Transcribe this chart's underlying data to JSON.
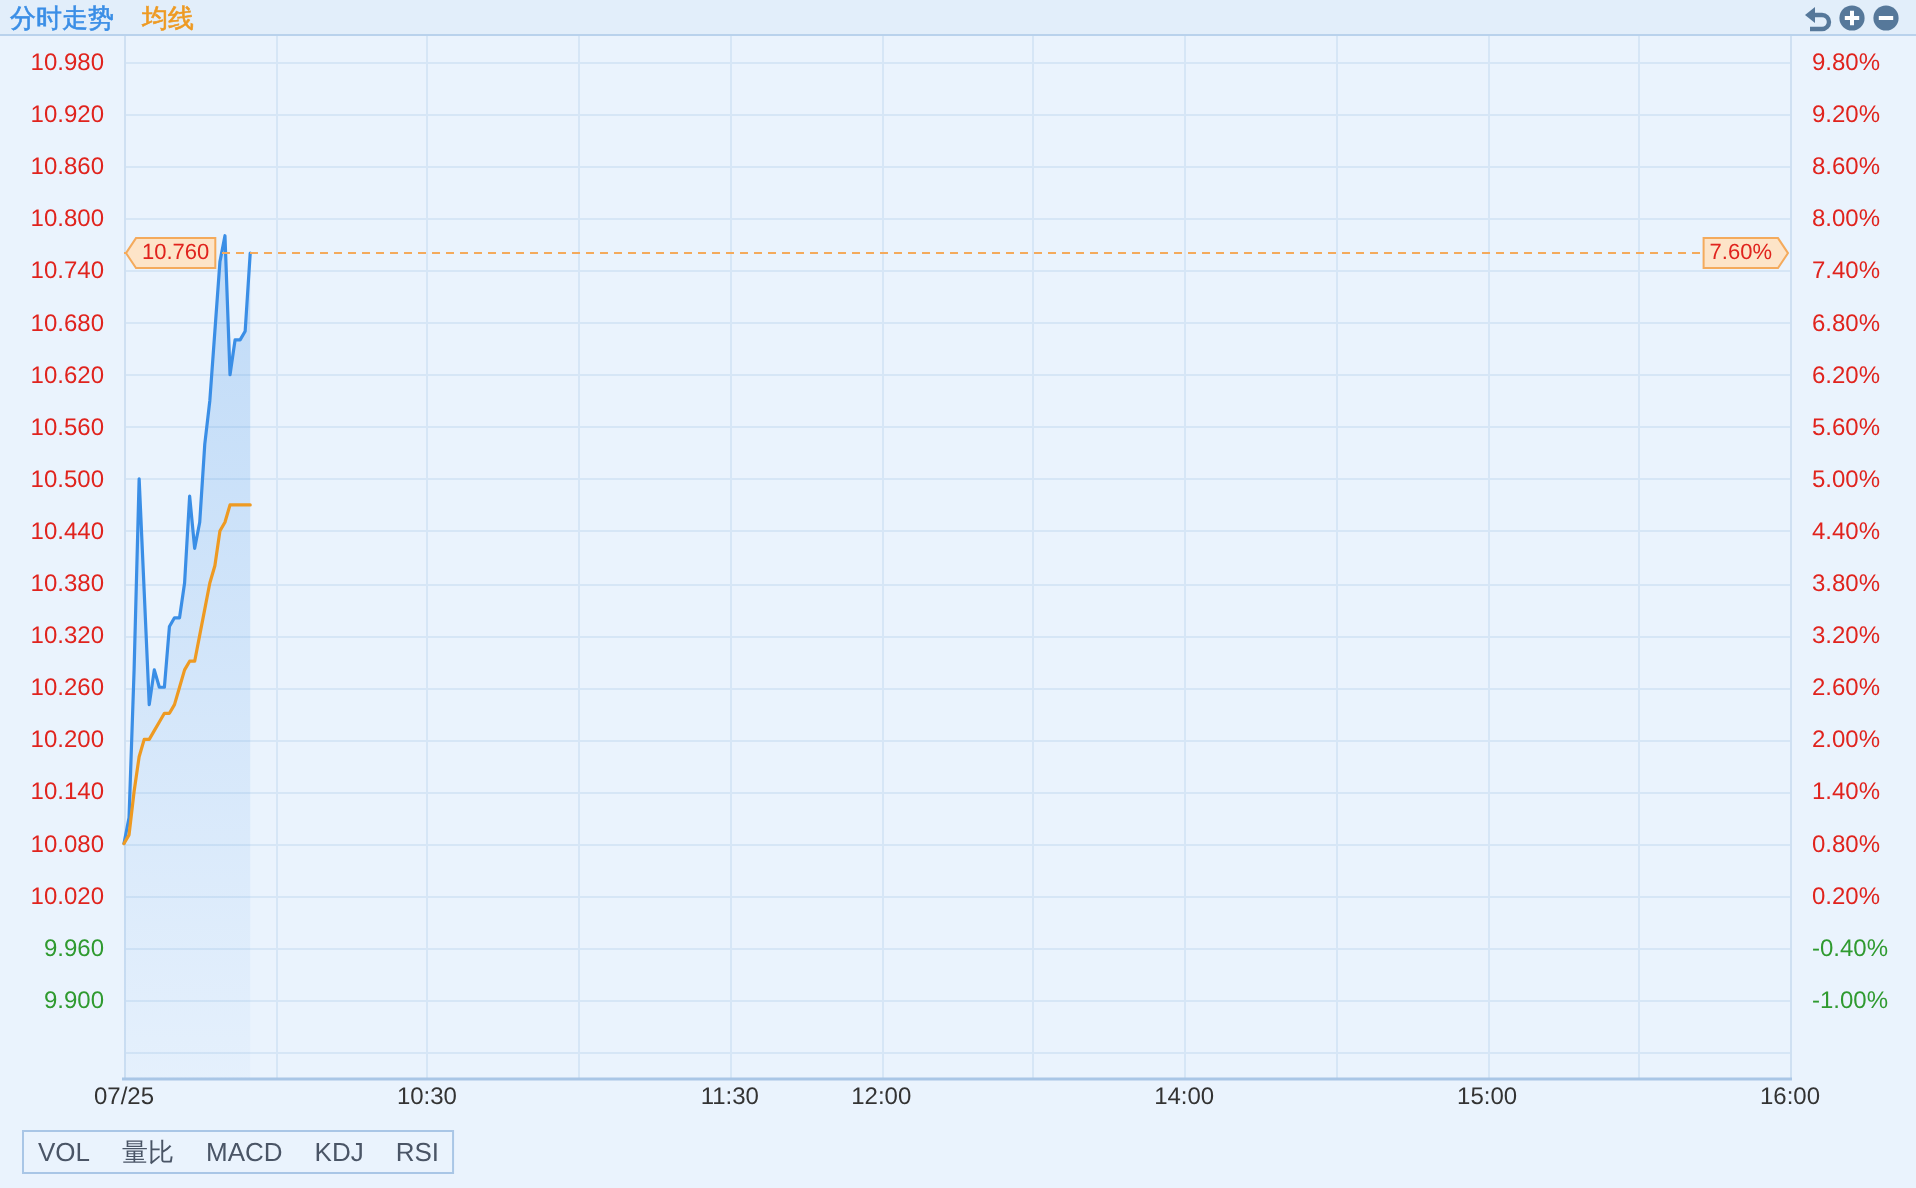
{
  "chart_data": {
    "type": "line",
    "legend": "top left",
    "grid": true,
    "categories": [
      "07/25",
      null,
      null,
      null,
      null,
      null,
      null,
      null,
      null,
      null,
      null,
      null,
      null,
      null,
      null,
      null,
      null,
      null,
      null,
      null,
      null,
      null,
      null,
      null,
      null,
      null,
      null,
      null,
      null,
      null,
      null,
      null,
      null,
      null,
      null,
      null,
      null,
      null,
      null,
      null,
      null,
      null,
      null,
      null,
      null,
      null,
      null,
      null,
      null,
      null,
      null,
      null,
      null,
      null,
      null,
      null,
      null,
      null,
      null,
      null,
      "10:30",
      null,
      null,
      null,
      null,
      null,
      null,
      null,
      null,
      null,
      null,
      null,
      null,
      null,
      null,
      null,
      null,
      null,
      null,
      null,
      null,
      null,
      null,
      null,
      null,
      null,
      null,
      null,
      null,
      null,
      null,
      null,
      null,
      null,
      null,
      null,
      null,
      null,
      null,
      null,
      null,
      null,
      null,
      null,
      null,
      null,
      null,
      null,
      null,
      null,
      null,
      null,
      null,
      null,
      null,
      null,
      null,
      null,
      null,
      null,
      "11:30",
      null,
      null,
      null,
      null,
      null,
      null,
      null,
      null,
      null,
      null,
      null,
      null,
      null,
      null,
      null,
      null,
      null,
      null,
      null,
      null,
      null,
      null,
      null,
      null,
      null,
      null,
      null,
      null,
      null,
      "12:00",
      null,
      null,
      null,
      null,
      null,
      null,
      null,
      null,
      null,
      null,
      null,
      null,
      null,
      null,
      null,
      null,
      null,
      null,
      null,
      null,
      null,
      null,
      null,
      null,
      null,
      null,
      null,
      null,
      null,
      null,
      null,
      null,
      null,
      null,
      null,
      null,
      null,
      null,
      null,
      null,
      null,
      null,
      null,
      null,
      null,
      null,
      null,
      null,
      null,
      null,
      null,
      null,
      null,
      null,
      null,
      null,
      null,
      null,
      null,
      "14:00",
      null,
      null,
      null,
      null,
      null,
      null,
      null,
      null,
      null,
      null,
      null,
      null,
      null,
      null,
      null,
      null,
      null,
      null,
      null,
      null,
      null,
      null,
      null,
      null,
      null,
      null,
      null,
      null,
      null,
      null,
      null,
      null,
      null,
      null,
      null,
      null,
      null,
      null,
      null,
      null,
      null,
      null,
      null,
      null,
      null,
      null,
      null,
      null,
      null,
      null,
      null,
      null,
      null,
      null,
      null,
      null,
      null,
      null,
      null,
      "15:00",
      null,
      null,
      null,
      null,
      null,
      null,
      null,
      null,
      null,
      null,
      null,
      null,
      null,
      null,
      null,
      null,
      null,
      null,
      null,
      null,
      null,
      null,
      null,
      null,
      null,
      null,
      null,
      null,
      null,
      null,
      null,
      null,
      null,
      null,
      null,
      null,
      null,
      null,
      null,
      null,
      null,
      null,
      null,
      null,
      null,
      null,
      null,
      null,
      null,
      null,
      null,
      null,
      null,
      null,
      null,
      null,
      null,
      null,
      null,
      "16:00"
    ],
    "series": [
      {
        "name": "分时走势",
        "type": "area",
        "color": "#3a8ee6",
        "values": [
          10.08,
          10.11,
          10.28,
          10.5,
          10.37,
          10.24,
          10.28,
          10.26,
          10.26,
          10.33,
          10.34,
          10.34,
          10.38,
          10.48,
          10.42,
          10.45,
          10.54,
          10.59,
          10.67,
          10.75,
          10.78,
          10.62,
          10.66,
          10.66,
          10.67,
          10.76,
          null,
          null,
          null,
          null,
          null,
          null,
          null,
          null,
          null,
          null,
          null,
          null,
          null,
          null,
          null,
          null,
          null,
          null,
          null,
          null,
          null,
          null,
          null,
          null,
          null,
          null,
          null,
          null,
          null,
          null,
          null,
          null,
          null,
          null,
          null,
          null,
          null,
          null,
          null,
          null,
          null,
          null,
          null,
          null,
          null,
          null,
          null,
          null,
          null,
          null,
          null,
          null,
          null,
          null,
          null,
          null,
          null,
          null,
          null,
          null,
          null,
          null,
          null,
          null,
          null,
          null,
          null,
          null,
          null,
          null,
          null,
          null,
          null,
          null,
          null,
          null,
          null,
          null,
          null,
          null,
          null,
          null,
          null,
          null,
          null,
          null,
          null,
          null,
          null,
          null,
          null,
          null,
          null,
          null,
          null,
          null,
          null,
          null,
          null,
          null,
          null,
          null,
          null,
          null,
          null,
          null,
          null,
          null,
          null,
          null,
          null,
          null,
          null,
          null,
          null,
          null,
          null,
          null,
          null,
          null,
          null,
          null,
          null,
          null,
          null,
          null,
          null,
          null,
          null,
          null,
          null,
          null,
          null,
          null,
          null,
          null,
          null,
          null,
          null,
          null,
          null,
          null,
          null,
          null,
          null,
          null,
          null,
          null,
          null,
          null,
          null,
          null,
          null,
          null,
          null,
          null,
          null,
          null,
          null,
          null,
          null,
          null,
          null,
          null,
          null,
          null,
          null,
          null,
          null,
          null,
          null,
          null,
          null,
          null,
          null,
          null,
          null,
          null,
          null,
          null,
          null,
          null,
          null,
          null,
          null,
          null,
          null,
          null,
          null,
          null,
          null,
          null,
          null,
          null,
          null,
          null,
          null,
          null,
          null,
          null,
          null,
          null,
          null,
          null,
          null,
          null,
          null,
          null,
          null,
          null,
          null,
          null,
          null,
          null,
          null,
          null,
          null,
          null,
          null,
          null,
          null,
          null,
          null,
          null,
          null,
          null,
          null,
          null,
          null,
          null,
          null,
          null,
          null,
          null,
          null,
          null,
          null,
          null,
          null,
          null,
          null,
          null,
          null,
          null,
          null,
          null,
          null,
          null,
          null,
          null,
          null,
          null,
          null,
          null,
          null,
          null,
          null,
          null,
          null,
          null,
          null,
          null,
          null,
          null,
          null,
          null,
          null,
          null,
          null,
          null,
          null,
          null,
          null,
          null,
          null,
          null,
          null,
          null,
          null,
          null,
          null,
          null,
          null,
          null,
          null,
          null,
          null,
          null,
          null,
          null,
          null,
          null,
          null,
          null,
          null,
          null,
          null,
          null,
          null,
          null,
          null,
          null,
          null,
          null,
          null
        ]
      },
      {
        "name": "均线",
        "color": "#ee9a22",
        "values": [
          10.08,
          10.09,
          10.14,
          10.18,
          10.2,
          10.2,
          10.21,
          10.22,
          10.23,
          10.23,
          10.24,
          10.26,
          10.28,
          10.29,
          10.29,
          10.32,
          10.35,
          10.38,
          10.4,
          10.44,
          10.45,
          10.47,
          10.47,
          10.47,
          10.47,
          10.47,
          null,
          null,
          null,
          null,
          null,
          null,
          null,
          null,
          null,
          null,
          null,
          null,
          null,
          null,
          null,
          null,
          null,
          null,
          null,
          null,
          null,
          null,
          null,
          null,
          null,
          null,
          null,
          null,
          null,
          null,
          null,
          null,
          null,
          null,
          null,
          null,
          null,
          null,
          null,
          null,
          null,
          null,
          null,
          null,
          null,
          null,
          null,
          null,
          null,
          null,
          null,
          null,
          null,
          null,
          null,
          null,
          null,
          null,
          null,
          null,
          null,
          null,
          null,
          null,
          null,
          null,
          null,
          null,
          null,
          null,
          null,
          null,
          null,
          null,
          null,
          null,
          null,
          null,
          null,
          null,
          null,
          null,
          null,
          null,
          null,
          null,
          null,
          null,
          null,
          null,
          null,
          null,
          null,
          null,
          null,
          null,
          null,
          null,
          null,
          null,
          null,
          null,
          null,
          null,
          null,
          null,
          null,
          null,
          null,
          null,
          null,
          null,
          null,
          null,
          null,
          null,
          null,
          null,
          null,
          null,
          null,
          null,
          null,
          null,
          null,
          null,
          null,
          null,
          null,
          null,
          null,
          null,
          null,
          null,
          null,
          null,
          null,
          null,
          null,
          null,
          null,
          null,
          null,
          null,
          null,
          null,
          null,
          null,
          null,
          null,
          null,
          null,
          null,
          null,
          null,
          null,
          null,
          null,
          null,
          null,
          null,
          null,
          null,
          null,
          null,
          null,
          null,
          null,
          null,
          null,
          null,
          null,
          null,
          null,
          null,
          null,
          null,
          null,
          null,
          null,
          null,
          null,
          null,
          null,
          null,
          null,
          null,
          null,
          null,
          null,
          null,
          null,
          null,
          null,
          null,
          null,
          null,
          null,
          null,
          null,
          null,
          null,
          null,
          null,
          null,
          null,
          null,
          null,
          null,
          null,
          null,
          null,
          null,
          null,
          null,
          null,
          null,
          null,
          null,
          null,
          null,
          null,
          null,
          null,
          null,
          null,
          null,
          null,
          null,
          null,
          null,
          null,
          null,
          null,
          null,
          null,
          null,
          null,
          null,
          null,
          null,
          null,
          null,
          null,
          null,
          null,
          null,
          null,
          null,
          null,
          null,
          null,
          null,
          null,
          null,
          null,
          null,
          null,
          null,
          null,
          null,
          null,
          null,
          null,
          null,
          null,
          null,
          null,
          null,
          null,
          null,
          null,
          null,
          null,
          null,
          null,
          null,
          null,
          null,
          null,
          null,
          null,
          null,
          null,
          null,
          null,
          null,
          null,
          null,
          null,
          null,
          null,
          null,
          null,
          null,
          null,
          null,
          null,
          null,
          null,
          null,
          null,
          null,
          null,
          null
        ]
      }
    ],
    "ylim": [
      9.81,
      11.01
    ],
    "yticks": [
      {
        "value": 10.98,
        "label": "10.980"
      },
      {
        "value": 10.92,
        "label": "10.920"
      },
      {
        "value": 10.86,
        "label": "10.860"
      },
      {
        "value": 10.8,
        "label": "10.800"
      },
      {
        "value": 10.74,
        "label": "10.740"
      },
      {
        "value": 10.68,
        "label": "10.680"
      },
      {
        "value": 10.62,
        "label": "10.620"
      },
      {
        "value": 10.56,
        "label": "10.560"
      },
      {
        "value": 10.5,
        "label": "10.500"
      },
      {
        "value": 10.44,
        "label": "10.440"
      },
      {
        "value": 10.38,
        "label": "10.380"
      },
      {
        "value": 10.32,
        "label": "10.320"
      },
      {
        "value": 10.26,
        "label": "10.260"
      },
      {
        "value": 10.2,
        "label": "10.200"
      },
      {
        "value": 10.14,
        "label": "10.140"
      },
      {
        "value": 10.08,
        "label": "10.080"
      },
      {
        "value": 10.02,
        "label": "10.020"
      },
      {
        "value": 9.96,
        "label": "9.960"
      },
      {
        "value": 9.9,
        "label": "9.900"
      },
      {
        "value": 9.84,
        "label": null
      }
    ],
    "y2lim": [
      -1.9,
      10.1
    ],
    "y2ticks": [
      {
        "value": 9.8,
        "label": "9.80%"
      },
      {
        "value": 9.2,
        "label": "9.20%"
      },
      {
        "value": 8.6,
        "label": "8.60%"
      },
      {
        "value": 8.0,
        "label": "8.00%"
      },
      {
        "value": 7.4,
        "label": "7.40%"
      },
      {
        "value": 6.8,
        "label": "6.80%"
      },
      {
        "value": 6.2,
        "label": "6.20%"
      },
      {
        "value": 5.6,
        "label": "5.60%"
      },
      {
        "value": 5.0,
        "label": "5.00%"
      },
      {
        "value": 4.4,
        "label": "4.40%"
      },
      {
        "value": 3.8,
        "label": "3.80%"
      },
      {
        "value": 3.2,
        "label": "3.20%"
      },
      {
        "value": 2.6,
        "label": "2.60%"
      },
      {
        "value": 2.0,
        "label": "2.00%"
      },
      {
        "value": 1.4,
        "label": "1.40%"
      },
      {
        "value": 0.8,
        "label": "0.80%"
      },
      {
        "value": 0.2,
        "label": "0.20%"
      },
      {
        "value": -0.4,
        "label": "-0.40%"
      },
      {
        "value": -1.0,
        "label": "-1.00%"
      }
    ],
    "ref_lines": [
      {
        "axis": "y",
        "value": 10.76,
        "label": "10.760",
        "color": "#f4aa5c",
        "line_style": "dashed"
      }
    ],
    "annotations": [
      {
        "text": "7.60%",
        "y": 10.76
      },
      "VOL",
      "量比",
      "MACD",
      "KDJ",
      "RSI"
    ]
  }
}
